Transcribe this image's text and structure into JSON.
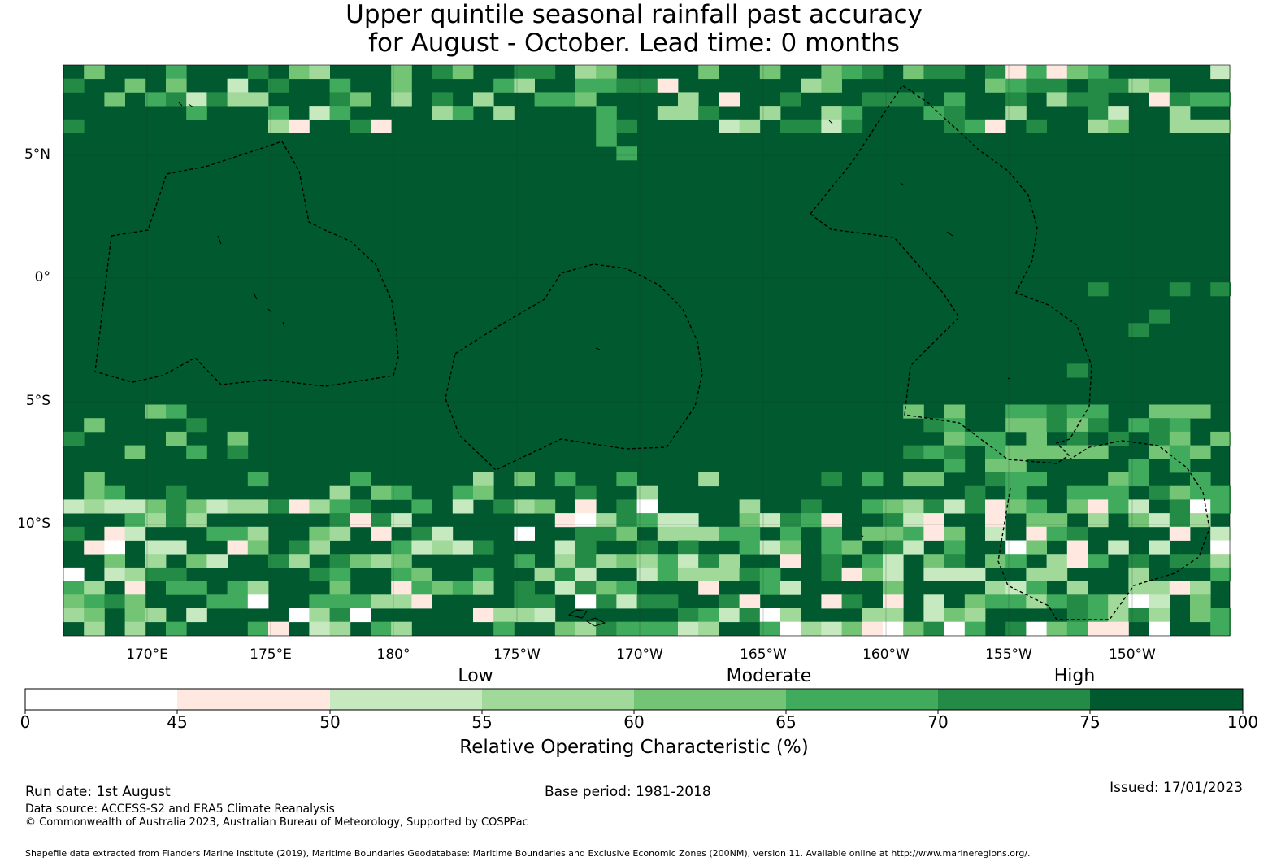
{
  "title": {
    "line1": "Upper quintile seasonal rainfall past accuracy",
    "line2": "for August - October. Lead time: 0 months"
  },
  "map": {
    "latitude_labels": [
      "5°N",
      "0°",
      "5°S",
      "10°S"
    ],
    "longitude_labels": [
      "170°E",
      "175°E",
      "180°",
      "175°W",
      "170°W",
      "165°W",
      "160°W",
      "155°W",
      "150°W"
    ],
    "extent": {
      "lon_min": 166.6,
      "lon_max": 213.8,
      "lat_min": -14.6,
      "lat_max": 8.7
    },
    "dominant_category": "75-100",
    "eez_outlines": 4
  },
  "colorbar": {
    "categories": [
      "Low",
      "Moderate",
      "High"
    ],
    "ticks": [
      "0",
      "45",
      "50",
      "55",
      "60",
      "65",
      "70",
      "75",
      "100"
    ],
    "colors": [
      "#ffffff",
      "#fee8df",
      "#c6e9c0",
      "#a1d99b",
      "#74c476",
      "#41ab5d",
      "#238b45",
      "#00592f"
    ],
    "label": "Relative Operating Characteristic (%)"
  },
  "footer": {
    "run_date": "Run date: 1st August",
    "base_period": "Base period: 1981-2018",
    "issued": "Issued: 17/01/2023",
    "data_source": "Data source: ACCESS-S2 and ERA5 Climate Reanalysis",
    "copyright": "© Commonwealth of Australia 2023, Australian Bureau of Meteorology, Supported by COSPPac",
    "shapefile": "Shapefile data extracted from Flanders Marine Institute (2019), Maritime Boundaries Geodatabase: Maritime Boundaries and Exclusive Economic Zones (200NM), version 11. Available online at http://www.marineregions.org/."
  }
}
